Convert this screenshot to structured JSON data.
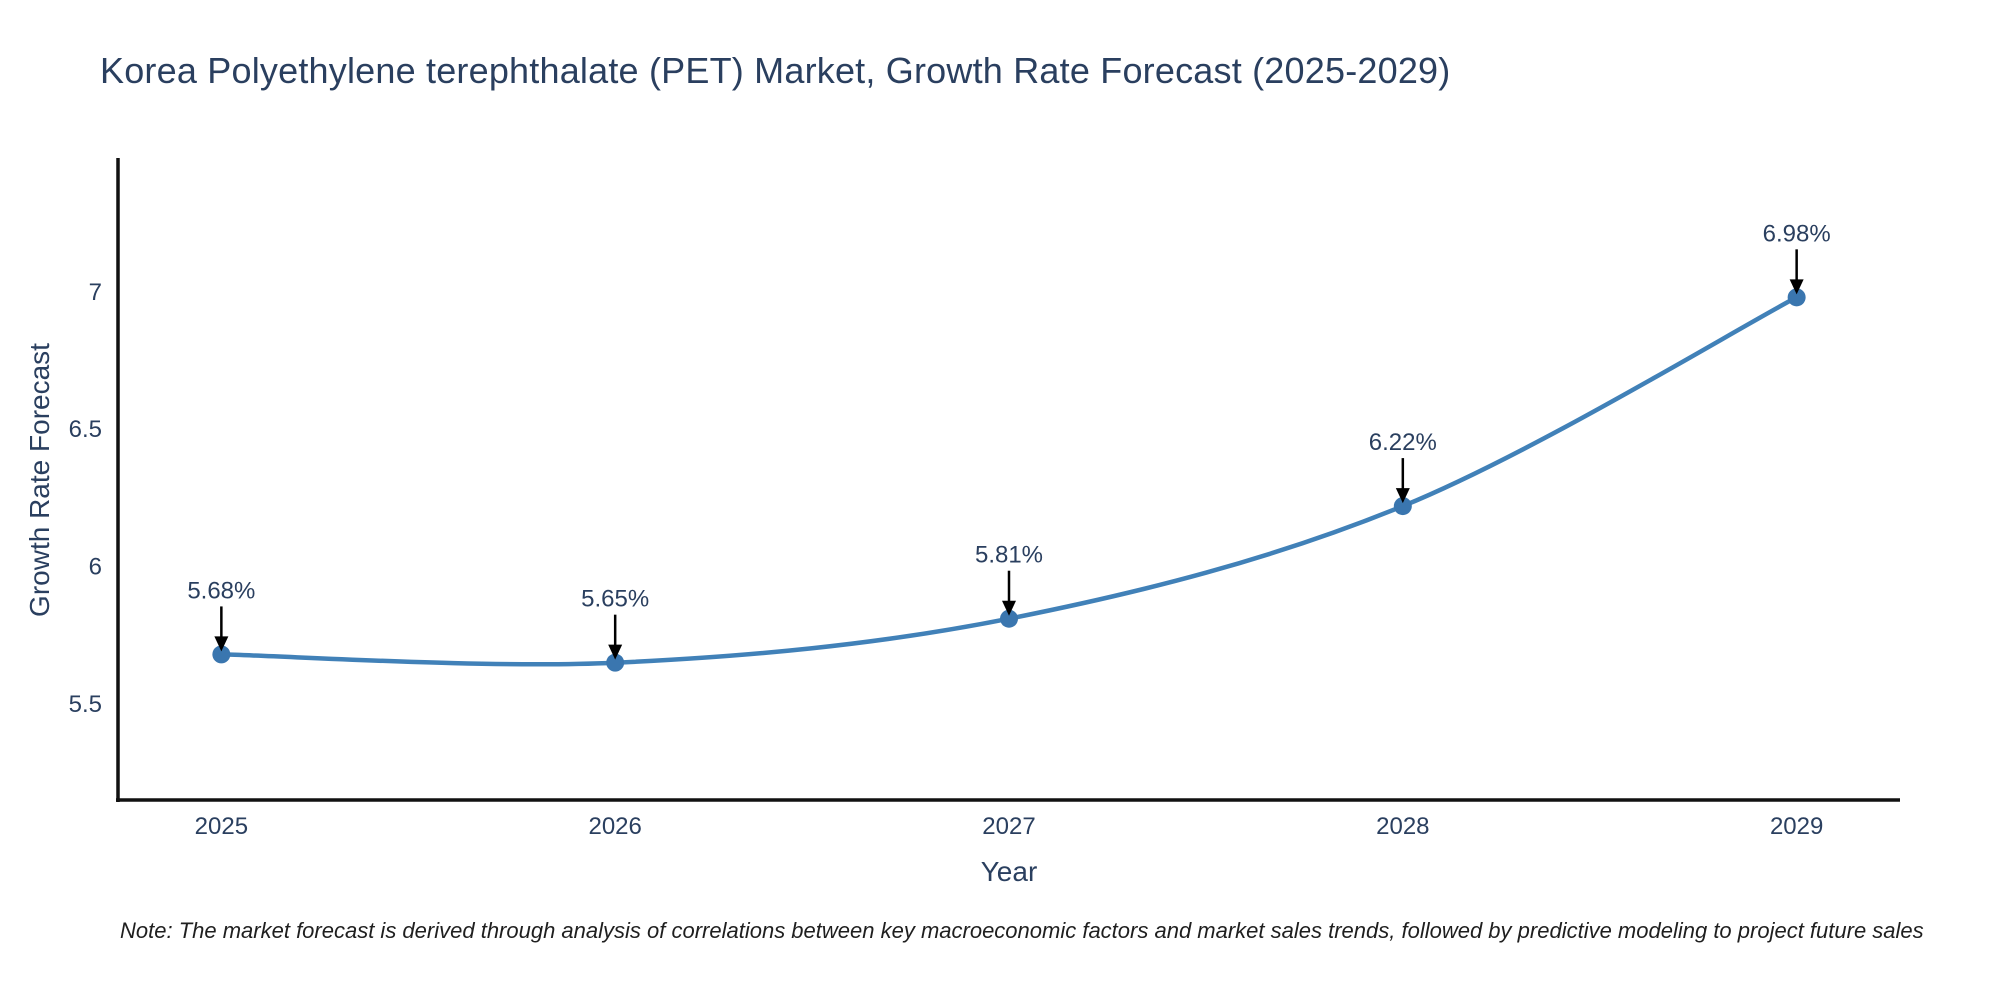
{
  "figure": {
    "note": "Note: The market forecast is derived through analysis of correlations between key macroeconomic factors and market sales trends, followed by predictive modeling to project future sales",
    "colors": {
      "background": "#ffffff",
      "title": "#2a3f5f",
      "axis_title": "#2a3f5f",
      "tick_label": "#2a3f5f",
      "axis_line": "#111111",
      "line": "#4181b8",
      "marker": "#3a76af",
      "annotation_text": "#2a3f5f",
      "arrow": "#000000",
      "note": "#1f1f1f"
    }
  },
  "chart_data": {
    "type": "line",
    "title": "Korea Polyethylene terephthalate (PET) Market, Growth Rate Forecast (2025-2029)",
    "xlabel": "Year",
    "ylabel": "Growth Rate Forecast",
    "categories": [
      "2025",
      "2026",
      "2027",
      "2028",
      "2029"
    ],
    "values": [
      5.68,
      5.65,
      5.81,
      6.22,
      6.98
    ],
    "point_labels": [
      "5.68%",
      "5.65%",
      "5.81%",
      "6.22%",
      "6.98%"
    ],
    "yticks": [
      5.5,
      6,
      6.5,
      7
    ],
    "ytick_labels": [
      "5.5",
      "6",
      "6.5",
      "7"
    ],
    "ylim": [
      5.15,
      7.48
    ],
    "x_padding_frac": 0.058,
    "line_shape": "spline",
    "grid": false,
    "legend": false,
    "annotation_style": "value label with downward arrow above each data point"
  }
}
